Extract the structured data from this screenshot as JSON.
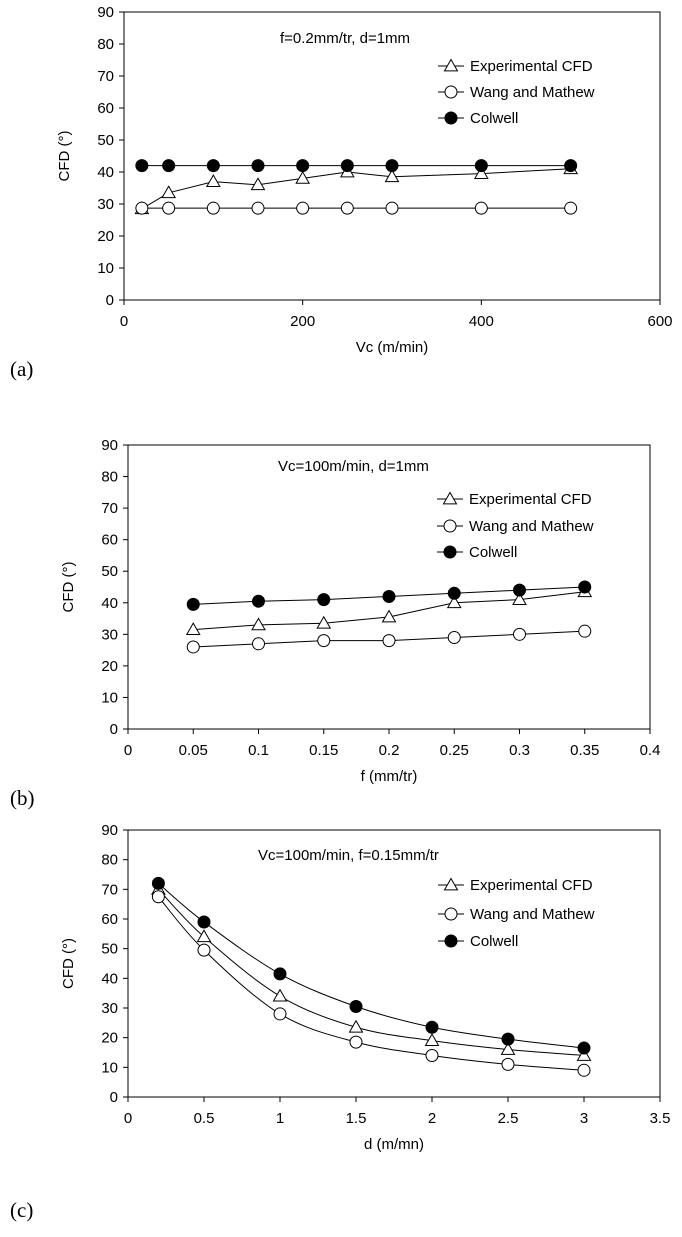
{
  "figure": {
    "colors": {
      "axis": "#000000",
      "line": "#000000",
      "open_fill": "#ffffff",
      "filled": "#000000",
      "background": "#ffffff"
    },
    "legend_entries": [
      "Experimental CFD",
      "Wang and Mathew",
      "Colwell"
    ]
  },
  "chart_data": [
    {
      "type": "line",
      "panel_label": "(a)",
      "annotation": "f=0.2mm/tr, d=1mm",
      "xlabel": "Vc (m/min)",
      "ylabel": "CFD (°)",
      "xlim": [
        0,
        600
      ],
      "ylim": [
        0,
        90
      ],
      "xticks": [
        0,
        200,
        400,
        600
      ],
      "xtick_labels": [
        "0",
        "200",
        "400",
        "600"
      ],
      "yticks": [
        0,
        10,
        20,
        30,
        40,
        50,
        60,
        70,
        80,
        90
      ],
      "ytick_labels": [
        "0",
        "10",
        "20",
        "30",
        "40",
        "50",
        "60",
        "70",
        "80",
        "90"
      ],
      "grid": false,
      "legend_position": "top-right",
      "x": [
        20,
        50,
        100,
        150,
        200,
        250,
        300,
        400,
        500
      ],
      "series": [
        {
          "name": "Experimental CFD",
          "marker": "open-triangle",
          "values": [
            28.5,
            33.5,
            37,
            36,
            38,
            40,
            38.5,
            39.5,
            41
          ]
        },
        {
          "name": "Wang and Mathew",
          "marker": "open-circle",
          "values": [
            28.7,
            28.7,
            28.7,
            28.7,
            28.7,
            28.7,
            28.7,
            28.7,
            28.7
          ]
        },
        {
          "name": "Colwell",
          "marker": "filled-circle",
          "values": [
            42,
            42,
            42,
            42,
            42,
            42,
            42,
            42,
            42
          ]
        }
      ]
    },
    {
      "type": "line",
      "panel_label": "(b)",
      "annotation": "Vc=100m/min, d=1mm",
      "xlabel": "f (mm/tr)",
      "ylabel": "CFD (°)",
      "xlim": [
        0,
        0.4
      ],
      "ylim": [
        0,
        90
      ],
      "xticks": [
        0,
        0.05,
        0.1,
        0.15,
        0.2,
        0.25,
        0.3,
        0.35,
        0.4
      ],
      "xtick_labels": [
        "0",
        "0.05",
        "0.1",
        "0.15",
        "0.2",
        "0.25",
        "0.3",
        "0.35",
        "0.4"
      ],
      "yticks": [
        0,
        10,
        20,
        30,
        40,
        50,
        60,
        70,
        80,
        90
      ],
      "ytick_labels": [
        "0",
        "10",
        "20",
        "30",
        "40",
        "50",
        "60",
        "70",
        "80",
        "90"
      ],
      "grid": false,
      "legend_position": "top-right",
      "x": [
        0.05,
        0.1,
        0.15,
        0.2,
        0.25,
        0.3,
        0.35
      ],
      "series": [
        {
          "name": "Experimental CFD",
          "marker": "open-triangle",
          "values": [
            31.5,
            33,
            33.5,
            35.5,
            40,
            41,
            43.5
          ]
        },
        {
          "name": "Wang and Mathew",
          "marker": "open-circle",
          "values": [
            26,
            27,
            28,
            28,
            29,
            30,
            31
          ]
        },
        {
          "name": "Colwell",
          "marker": "filled-circle",
          "values": [
            39.5,
            40.5,
            41,
            42,
            43,
            44,
            45
          ]
        }
      ]
    },
    {
      "type": "line",
      "panel_label": "(c)",
      "annotation": "Vc=100m/min, f=0.15mm/tr",
      "xlabel": "d (m/mn)",
      "ylabel": "CFD (°)",
      "xlim": [
        0,
        3.5
      ],
      "ylim": [
        0,
        90
      ],
      "xticks": [
        0,
        0.5,
        1,
        1.5,
        2,
        2.5,
        3,
        3.5
      ],
      "xtick_labels": [
        "0",
        "0.5",
        "1",
        "1.5",
        "2",
        "2.5",
        "3",
        "3.5"
      ],
      "yticks": [
        0,
        10,
        20,
        30,
        40,
        50,
        60,
        70,
        80,
        90
      ],
      "ytick_labels": [
        "0",
        "10",
        "20",
        "30",
        "40",
        "50",
        "60",
        "70",
        "80",
        "90"
      ],
      "grid": false,
      "legend_position": "top-right",
      "smooth": true,
      "x": [
        0.2,
        0.5,
        1,
        1.5,
        2,
        2.5,
        3
      ],
      "series": [
        {
          "name": "Experimental CFD",
          "marker": "open-triangle",
          "values": [
            70,
            54,
            34,
            23.5,
            19,
            16,
            14
          ]
        },
        {
          "name": "Wang and Mathew",
          "marker": "open-circle",
          "values": [
            67.5,
            49.5,
            28,
            18.5,
            14,
            11,
            9
          ]
        },
        {
          "name": "Colwell",
          "marker": "filled-circle",
          "values": [
            72,
            59,
            41.5,
            30.5,
            23.5,
            19.5,
            16.5
          ]
        }
      ]
    }
  ]
}
